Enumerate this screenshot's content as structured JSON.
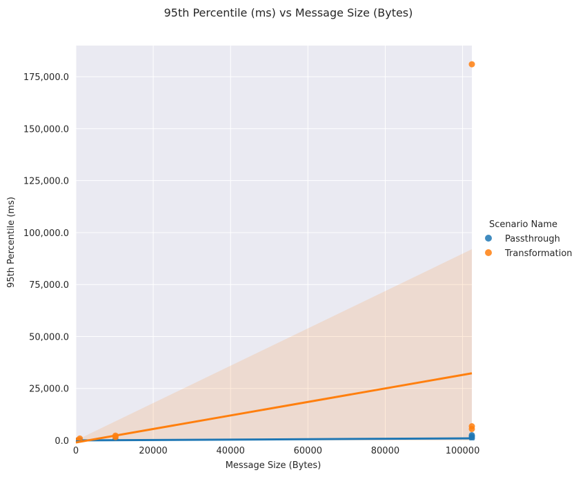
{
  "chart_data": {
    "type": "scatter",
    "title": "95th Percentile (ms) vs Message Size (Bytes)",
    "xlabel": "Message Size (Bytes)",
    "ylabel": "95th Percentile (ms)",
    "xlim": [
      0,
      102400
    ],
    "ylim": [
      0,
      190000
    ],
    "x_ticks": [
      0,
      20000,
      40000,
      60000,
      80000,
      100000
    ],
    "x_tick_labels": [
      "0",
      "20000",
      "40000",
      "60000",
      "80000",
      "100000"
    ],
    "y_ticks": [
      0,
      25000,
      50000,
      75000,
      100000,
      125000,
      150000,
      175000
    ],
    "y_tick_labels": [
      "0.0",
      "25,000.0",
      "50,000.0",
      "75,000.0",
      "100,000.0",
      "125,000.0",
      "150,000.0",
      "175,000.0"
    ],
    "grid": true,
    "legend": {
      "title": "Scenario Name",
      "placement": "right"
    },
    "series": [
      {
        "name": "Passthrough",
        "color": "#1f77b4",
        "points": [
          {
            "x": 500,
            "y": 20
          },
          {
            "x": 1024,
            "y": 40
          },
          {
            "x": 10240,
            "y": 120
          },
          {
            "x": 10240,
            "y": 200
          },
          {
            "x": 102400,
            "y": 1000
          },
          {
            "x": 102400,
            "y": 1800
          },
          {
            "x": 102400,
            "y": 2500
          }
        ],
        "regression": {
          "x": [
            0,
            102400
          ],
          "y": [
            0,
            1000
          ]
        }
      },
      {
        "name": "Transformation",
        "color": "#ff7f0e",
        "points": [
          {
            "x": 500,
            "y": 100
          },
          {
            "x": 1024,
            "y": 900
          },
          {
            "x": 10240,
            "y": 1600
          },
          {
            "x": 10240,
            "y": 2300
          },
          {
            "x": 102400,
            "y": 5500
          },
          {
            "x": 102400,
            "y": 6800
          },
          {
            "x": 102400,
            "y": 181000
          }
        ],
        "regression": {
          "x": [
            0,
            102400
          ],
          "y": [
            -1000,
            32300
          ]
        },
        "ci_band": {
          "x": [
            0,
            102400
          ],
          "lower": [
            0,
            0
          ],
          "upper": [
            0,
            92000
          ]
        }
      }
    ]
  }
}
